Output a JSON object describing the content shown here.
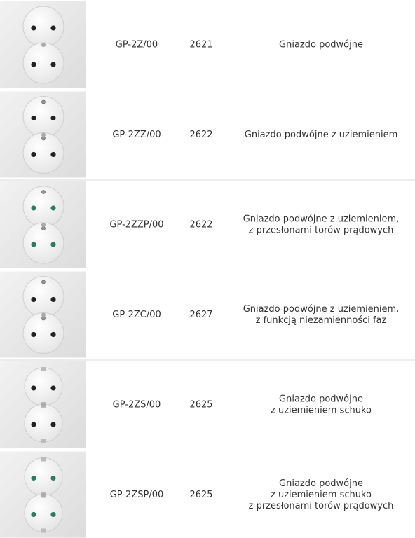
{
  "table": {
    "rows": [
      {
        "code": "GP-2Z/00",
        "number": "2621",
        "description": [
          "Gniazdo podwójne"
        ]
      },
      {
        "code": "GP-2ZZ/00",
        "number": "2622",
        "description": [
          "Gniazdo podwójne z uziemieniem"
        ]
      },
      {
        "code": "GP-2ZZP/00",
        "number": "2622",
        "description": [
          "Gniazdo podwójne z uziemieniem,",
          "z przesłonami torów prądowych"
        ]
      },
      {
        "code": "GP-2ZC/00",
        "number": "2627",
        "description": [
          "Gniazdo podwójne z uziemieniem,",
          "z funkcją niezamienności faz"
        ]
      },
      {
        "code": "GP-2ZS/00",
        "number": "2625",
        "description": [
          "Gniazdo podwójne",
          "z uziemieniem schuko"
        ]
      },
      {
        "code": "GP-2ZSP/00",
        "number": "2625",
        "description": [
          "Gniazdo podwójne",
          "z uziemieniem schuko",
          "z przesłonami torów prądowych"
        ]
      }
    ]
  }
}
